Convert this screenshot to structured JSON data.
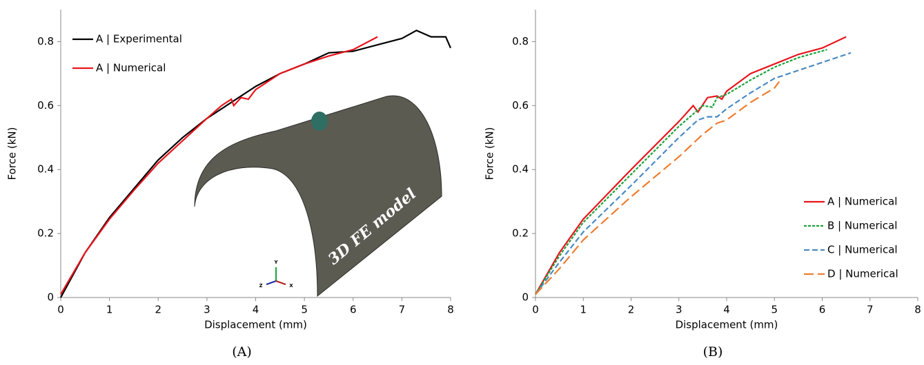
{
  "chart_data": [
    {
      "type": "line",
      "label": "(A)",
      "x_label": "Displacement (mm)",
      "y_label": "Force (kN)",
      "xlim": [
        0,
        8
      ],
      "xticks": [
        0,
        1,
        2,
        3,
        4,
        5,
        6,
        7,
        8
      ],
      "ylim": [
        0,
        0.9
      ],
      "yticks": [
        0,
        0.2,
        0.4,
        0.6,
        0.8
      ],
      "legend": "upper left",
      "annotations": [
        "3D FE model"
      ],
      "axis_triad": [
        "Y",
        "Z",
        "X"
      ],
      "series": [
        {
          "name": "A | Experimental",
          "color": "#000000",
          "dash": "solid",
          "x": [
            0,
            0.5,
            1,
            1.5,
            2,
            2.5,
            3,
            3.5,
            4,
            4.5,
            5,
            5.5,
            6,
            6.5,
            7,
            7.3,
            7.6,
            7.9,
            8
          ],
          "values": [
            0,
            0.14,
            0.25,
            0.34,
            0.43,
            0.5,
            0.56,
            0.61,
            0.66,
            0.7,
            0.73,
            0.765,
            0.77,
            0.79,
            0.81,
            0.835,
            0.815,
            0.815,
            0.78
          ]
        },
        {
          "name": "A | Numerical",
          "color": "#e8141c",
          "dash": "solid",
          "x": [
            0,
            0.5,
            1,
            1.5,
            2,
            2.5,
            3,
            3.3,
            3.5,
            3.55,
            3.7,
            3.85,
            4,
            4.5,
            5,
            5.5,
            6,
            6.5
          ],
          "values": [
            0.01,
            0.14,
            0.245,
            0.335,
            0.42,
            0.49,
            0.56,
            0.6,
            0.62,
            0.6,
            0.625,
            0.62,
            0.65,
            0.7,
            0.73,
            0.755,
            0.775,
            0.815
          ]
        }
      ]
    },
    {
      "type": "line",
      "label": "(B)",
      "x_label": "Displacement (mm)",
      "y_label": "Force (kN)",
      "xlim": [
        0,
        8
      ],
      "xticks": [
        0,
        1,
        2,
        3,
        4,
        5,
        6,
        7,
        8
      ],
      "ylim": [
        0,
        0.9
      ],
      "yticks": [
        0,
        0.2,
        0.4,
        0.6,
        0.8
      ],
      "legend": "center right",
      "series": [
        {
          "name": "A | Numerical",
          "color": "#e8141c",
          "dash": "solid",
          "x": [
            0,
            0.5,
            1,
            2,
            3,
            3.3,
            3.4,
            3.6,
            3.8,
            3.9,
            4,
            4.5,
            5,
            5.5,
            6,
            6.5
          ],
          "values": [
            0.01,
            0.14,
            0.245,
            0.4,
            0.55,
            0.6,
            0.58,
            0.625,
            0.63,
            0.62,
            0.645,
            0.7,
            0.73,
            0.76,
            0.78,
            0.815
          ]
        },
        {
          "name": "B | Numerical",
          "color": "#1aa33a",
          "dash": "dotted",
          "x": [
            0,
            0.5,
            1,
            2,
            3,
            3.35,
            3.5,
            3.7,
            3.8,
            4,
            4.5,
            5,
            5.5,
            6.1
          ],
          "values": [
            0.01,
            0.13,
            0.235,
            0.385,
            0.535,
            0.58,
            0.6,
            0.595,
            0.625,
            0.635,
            0.68,
            0.72,
            0.75,
            0.775
          ]
        },
        {
          "name": "C | Numerical",
          "color": "#4a8ac4",
          "dash": "dashed",
          "x": [
            0,
            0.5,
            1,
            2,
            3,
            3.4,
            3.6,
            3.8,
            4,
            4.5,
            5,
            5.5,
            6,
            6.6
          ],
          "values": [
            0.01,
            0.11,
            0.205,
            0.35,
            0.5,
            0.555,
            0.565,
            0.565,
            0.59,
            0.64,
            0.685,
            0.71,
            0.735,
            0.765
          ]
        },
        {
          "name": "D | Numerical",
          "color": "#ee7d2e",
          "dash": "long-dashed",
          "x": [
            0,
            0.5,
            1,
            2,
            3,
            3.5,
            3.8,
            4,
            4.5,
            5,
            5.1
          ],
          "values": [
            0.01,
            0.09,
            0.18,
            0.315,
            0.44,
            0.51,
            0.545,
            0.555,
            0.61,
            0.655,
            0.675
          ]
        }
      ]
    }
  ]
}
